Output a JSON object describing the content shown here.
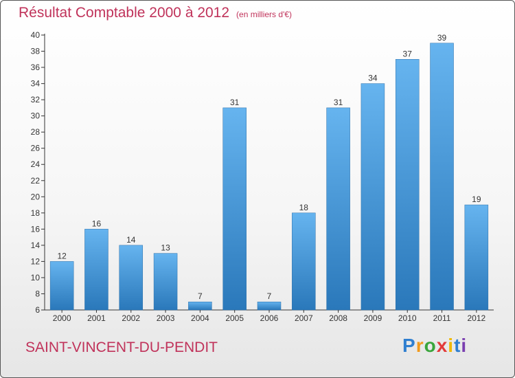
{
  "header": {
    "title": "Résultat Comptable 2000 à 2012",
    "unit": "(en milliers d'€)"
  },
  "footer": {
    "commune": "SAINT-VINCENT-DU-PENDIT",
    "logo": "Proxiti"
  },
  "colors": {
    "bar_top": "#66b4ef",
    "bar_bottom": "#2a78ba",
    "title": "#c0325a"
  },
  "chart_data": {
    "type": "bar",
    "categories": [
      "2000",
      "2001",
      "2002",
      "2003",
      "2004",
      "2005",
      "2006",
      "2007",
      "2008",
      "2009",
      "2010",
      "2011",
      "2012"
    ],
    "values": [
      12,
      16,
      14,
      13,
      7,
      31,
      7,
      18,
      31,
      34,
      37,
      39,
      19
    ],
    "ylim": [
      6,
      40
    ],
    "yticks": [
      6,
      8,
      10,
      12,
      14,
      16,
      18,
      20,
      22,
      24,
      26,
      28,
      30,
      32,
      34,
      36,
      38,
      40
    ],
    "grid": false,
    "data_labels": true
  }
}
